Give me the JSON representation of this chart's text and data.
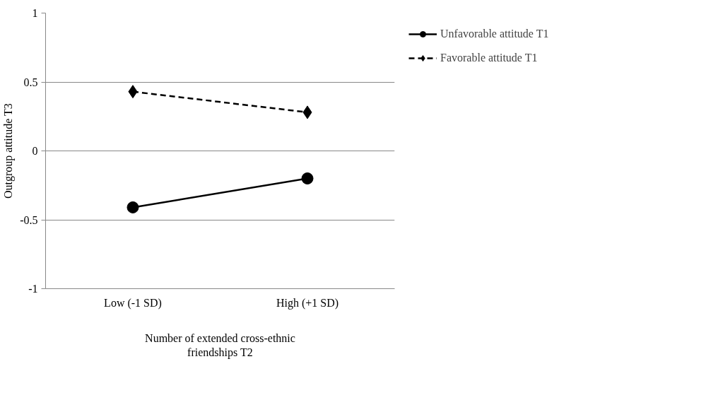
{
  "chart_data": {
    "type": "line",
    "xlabel": "Number of extended cross-ethnic friendships T2",
    "ylabel": "Outgroup attitude T3",
    "categories": [
      "Low (-1 SD)",
      "High (+1 SD)"
    ],
    "series": [
      {
        "name": "Unfavorable attitude T1",
        "color": "#000000",
        "values": [
          -0.41,
          -0.2
        ],
        "marker": "circle",
        "line_style": "solid"
      },
      {
        "name": "Favorable attitude T1",
        "color": "#000000",
        "values": [
          0.43,
          0.28
        ],
        "marker": "diamond",
        "line_style": "dashed"
      }
    ],
    "ylim": [
      -1,
      1
    ],
    "yticks": [
      -1,
      -0.5,
      0,
      0.5,
      1
    ],
    "grid": "y",
    "legend": "top right"
  }
}
